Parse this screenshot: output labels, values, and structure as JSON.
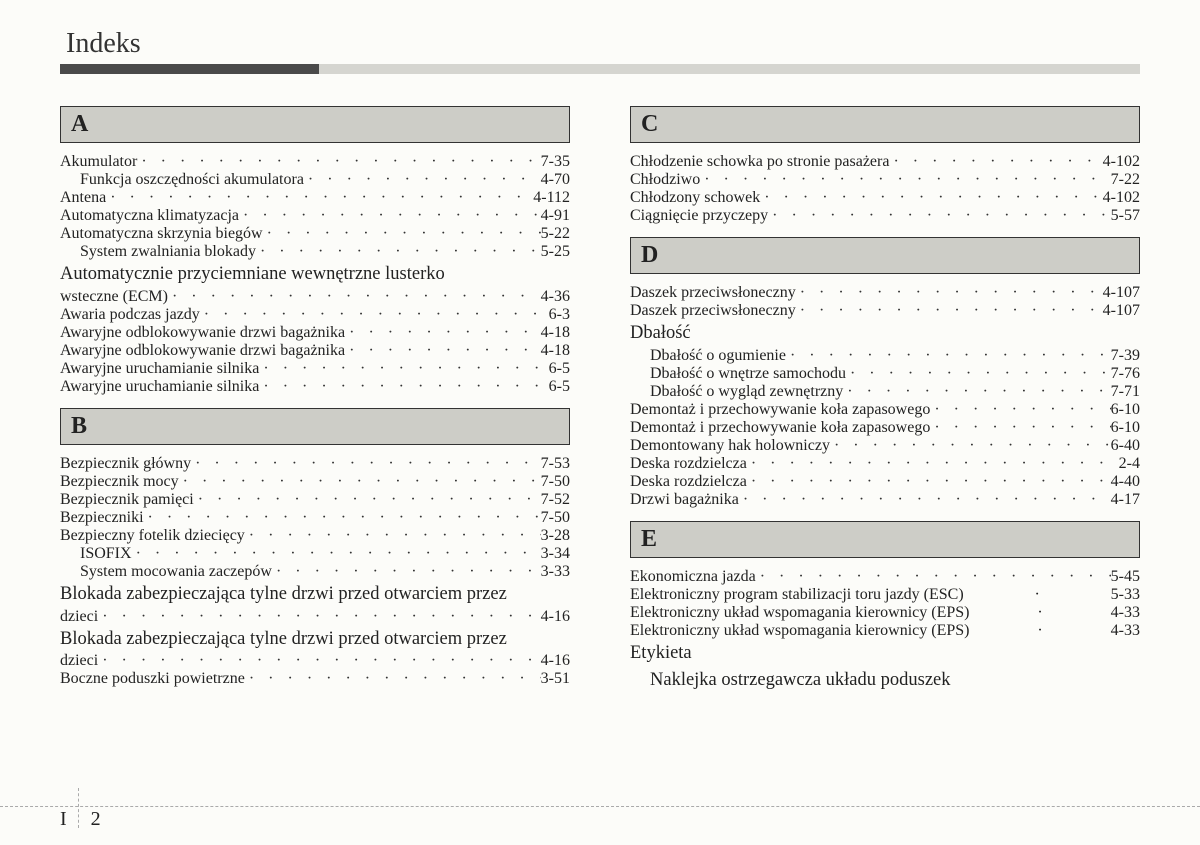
{
  "header": {
    "title": "Indeks"
  },
  "footer": {
    "chapter": "I",
    "page": "2"
  },
  "colors": {
    "page_bg": "#fcfcf9",
    "letter_bg": "#cdcdc7",
    "bar_dark": "#4a4a4a",
    "bar_light": "#d5d5d0"
  },
  "left": [
    {
      "letter": "A",
      "entries": [
        {
          "label": "Akumulator",
          "page": "7-35",
          "level": 1
        },
        {
          "label": "Funkcja oszczędności akumulatora",
          "page": "4-70",
          "level": 2
        },
        {
          "label": "Antena",
          "page": "4-112",
          "level": 1
        },
        {
          "label": "Automatyczna klimatyzacja",
          "page": "4-91",
          "level": 1
        },
        {
          "label": "Automatyczna skrzynia biegów",
          "page": "5-22",
          "level": 1
        },
        {
          "label": "System zwalniania blokady",
          "page": "5-25",
          "level": 2
        },
        {
          "type": "wrap",
          "label": "Automatycznie przyciemniane wewnętrzne lusterko",
          "level": 1
        },
        {
          "label": "wsteczne (ECM)",
          "page": "4-36",
          "level": 1
        },
        {
          "label": "Awaria podczas jazdy",
          "page": "6-3",
          "level": 1
        },
        {
          "label": "Awaryjne odblokowywanie drzwi bagażnika",
          "page": "4-18",
          "level": 1
        },
        {
          "label": "Awaryjne odblokowywanie drzwi bagażnika",
          "page": "4-18",
          "level": 1
        },
        {
          "label": "Awaryjne uruchamianie silnika",
          "page": "6-5",
          "level": 1
        },
        {
          "label": "Awaryjne uruchamianie silnika",
          "page": "6-5",
          "level": 1
        }
      ]
    },
    {
      "letter": "B",
      "entries": [
        {
          "label": "Bezpiecznik główny",
          "page": "7-53",
          "level": 1
        },
        {
          "label": "Bezpiecznik mocy",
          "page": "7-50",
          "level": 1
        },
        {
          "label": "Bezpiecznik pamięci",
          "page": "7-52",
          "level": 1
        },
        {
          "label": "Bezpieczniki",
          "page": "7-50",
          "level": 1
        },
        {
          "label": "Bezpieczny fotelik dziecięcy",
          "page": "3-28",
          "level": 1
        },
        {
          "label": "ISOFIX",
          "page": "3-34",
          "level": 2
        },
        {
          "label": "System mocowania zaczepów",
          "page": "3-33",
          "level": 2
        },
        {
          "type": "wrap",
          "label": "Blokada zabezpieczająca tylne drzwi przed otwarciem przez",
          "level": 1
        },
        {
          "label": "dzieci",
          "page": "4-16",
          "level": 1
        },
        {
          "type": "wrap",
          "label": "Blokada zabezpieczająca tylne drzwi przed otwarciem przez",
          "level": 1
        },
        {
          "label": "dzieci",
          "page": "4-16",
          "level": 1
        },
        {
          "label": "Boczne poduszki powietrzne",
          "page": "3-51",
          "level": 1
        }
      ]
    }
  ],
  "right": [
    {
      "letter": "C",
      "entries": [
        {
          "label": "Chłodzenie schowka po stronie pasażera",
          "page": "4-102",
          "level": 1
        },
        {
          "label": "Chłodziwo",
          "page": "7-22",
          "level": 1
        },
        {
          "label": "Chłodzony schowek",
          "page": "4-102",
          "level": 1
        },
        {
          "label": "Ciągnięcie przyczepy",
          "page": "5-57",
          "level": 1
        }
      ]
    },
    {
      "letter": "D",
      "entries": [
        {
          "label": "Daszek przeciwsłoneczny",
          "page": "4-107",
          "level": 1
        },
        {
          "label": "Daszek przeciwsłoneczny",
          "page": "4-107",
          "level": 1
        },
        {
          "type": "wrap",
          "label": "Dbałość",
          "level": 1
        },
        {
          "label": "Dbałość o ogumienie",
          "page": "7-39",
          "level": 2
        },
        {
          "label": "Dbałość o wnętrze samochodu",
          "page": "7-76",
          "level": 2
        },
        {
          "label": "Dbałość o wygląd zewnętrzny",
          "page": "7-71",
          "level": 2
        },
        {
          "label": "Demontaż i przechowywanie koła zapasowego",
          "page": "6-10",
          "level": 1
        },
        {
          "label": "Demontaż i przechowywanie koła zapasowego",
          "page": "6-10",
          "level": 1
        },
        {
          "label": "Demontowany hak holowniczy",
          "page": "6-40",
          "level": 1
        },
        {
          "label": "Deska rozdzielcza",
          "page": "2-4",
          "level": 1
        },
        {
          "label": "Deska rozdzielcza",
          "page": "4-40",
          "level": 1
        },
        {
          "label": "Drzwi bagażnika",
          "page": "4-17",
          "level": 1
        }
      ]
    },
    {
      "letter": "E",
      "entries": [
        {
          "label": "Ekonomiczna jazda",
          "page": "5-45",
          "level": 1
        },
        {
          "label": "Elektroniczny program stabilizacji toru jazdy (ESC)",
          "page": "5-33",
          "level": 1,
          "tight": true
        },
        {
          "label": "Elektroniczny układ wspomagania kierownicy (EPS)",
          "page": "4-33",
          "level": 1,
          "tight": true
        },
        {
          "label": "Elektroniczny układ wspomagania kierownicy (EPS)",
          "page": "4-33",
          "level": 1,
          "tight": true
        },
        {
          "type": "wrap",
          "label": "Etykieta",
          "level": 1
        },
        {
          "type": "wrap",
          "label": "Naklejka ostrzegawcza układu poduszek",
          "level": 2
        }
      ]
    }
  ]
}
